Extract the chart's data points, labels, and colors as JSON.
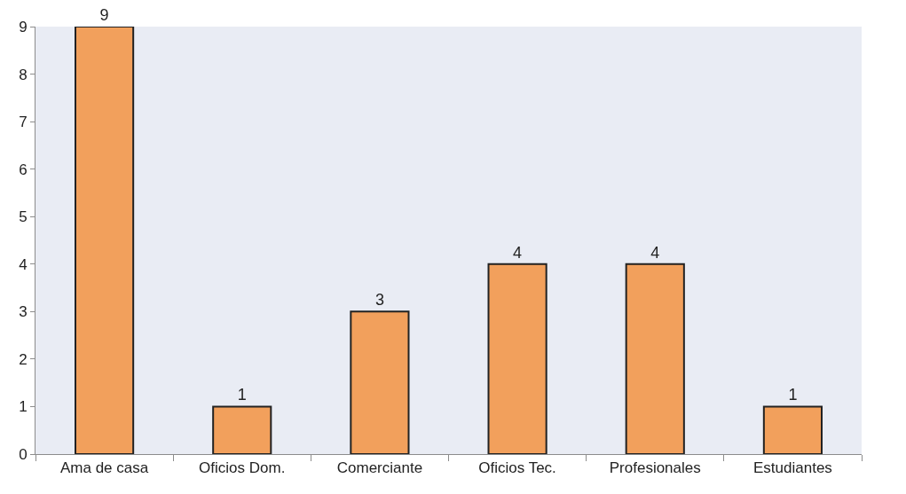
{
  "chart_data": {
    "type": "bar",
    "categories": [
      "Ama de casa",
      "Oficios Dom.",
      "Comerciante",
      "Oficios Tec.",
      "Profesionales",
      "Estudiantes"
    ],
    "values": [
      9,
      1,
      3,
      4,
      4,
      1
    ],
    "color": "#f2a05c",
    "ylim": [
      0,
      9
    ],
    "yticks": [
      0,
      1,
      2,
      3,
      4,
      5,
      6,
      7,
      8,
      9
    ],
    "data_labels": true,
    "grid": false
  }
}
